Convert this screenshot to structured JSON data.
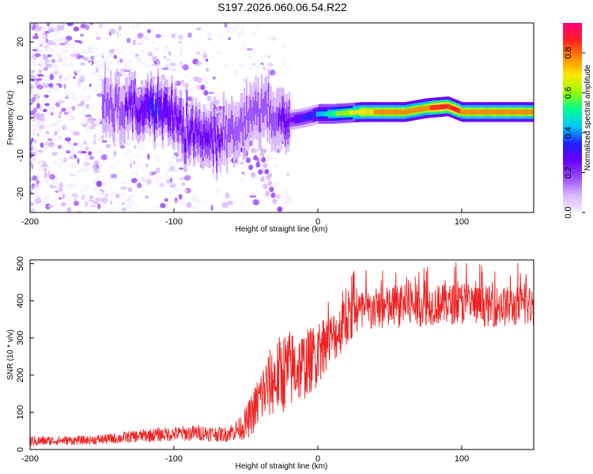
{
  "title": "S197.2026.060.06.54.R22",
  "colors": {
    "snr_line": "#ee2222",
    "background": "#ffffff",
    "colormap": [
      "#f5f0ff",
      "#d9b8ff",
      "#9b4dff",
      "#6a00ff",
      "#2020ff",
      "#00c8ff",
      "#00ff90",
      "#9cff00",
      "#ffe600",
      "#ff8800",
      "#ff2020",
      "#ff0080"
    ]
  },
  "chart_data": [
    {
      "type": "heatmap",
      "name": "spectrogram",
      "title": "S197.2026.060.06.54.R22",
      "xlabel": "Height of straight line (km)",
      "ylabel": "Frequency (Hz)",
      "xlim": [
        -200,
        150
      ],
      "ylim": [
        -25,
        25
      ],
      "xticks": [
        -200,
        -100,
        0,
        100
      ],
      "xtick_labels": [
        "-200",
        "-100",
        "0",
        "100"
      ],
      "yticks": [
        -20,
        -10,
        0,
        10,
        20
      ],
      "ytick_labels": [
        "-20",
        "-10",
        "0",
        "10",
        "20"
      ],
      "colorbar": {
        "label": "Normalized spectral amplitude",
        "range": [
          0,
          0.95
        ],
        "ticks": [
          0.0,
          0.2,
          0.4,
          0.6,
          0.8
        ],
        "tick_labels": [
          "0.0",
          "0.2",
          "0.4",
          "0.6",
          "0.8"
        ]
      },
      "ridge": [
        {
          "x": -150,
          "f": 3,
          "a": 0.2
        },
        {
          "x": -130,
          "f": 2,
          "a": 0.25
        },
        {
          "x": -115,
          "f": 3,
          "a": 0.35
        },
        {
          "x": -100,
          "f": 0,
          "a": 0.3
        },
        {
          "x": -90,
          "f": -5,
          "a": 0.3
        },
        {
          "x": -70,
          "f": -5,
          "a": 0.25
        },
        {
          "x": -55,
          "f": -2,
          "a": 0.2
        },
        {
          "x": -40,
          "f": 2,
          "a": 0.2
        },
        {
          "x": -25,
          "f": -1,
          "a": 0.25
        },
        {
          "x": -10,
          "f": 0,
          "a": 0.35
        },
        {
          "x": 0,
          "f": 1,
          "a": 0.45
        },
        {
          "x": 10,
          "f": 1,
          "a": 0.6
        },
        {
          "x": 30,
          "f": 1.5,
          "a": 0.8
        },
        {
          "x": 60,
          "f": 1.5,
          "a": 0.85
        },
        {
          "x": 75,
          "f": 2.5,
          "a": 0.9
        },
        {
          "x": 90,
          "f": 3,
          "a": 0.95
        },
        {
          "x": 100,
          "f": 1.5,
          "a": 0.9
        },
        {
          "x": 130,
          "f": 1.5,
          "a": 0.9
        },
        {
          "x": 150,
          "f": 1.5,
          "a": 0.85
        }
      ]
    },
    {
      "type": "line",
      "name": "snr",
      "xlabel": "Height of straight line (km)",
      "ylabel": "SNR (10 * v/v)",
      "xlim": [
        -200,
        150
      ],
      "ylim": [
        0,
        510
      ],
      "xticks": [
        -200,
        -100,
        0,
        100
      ],
      "xtick_labels": [
        "-200",
        "-100",
        "0",
        "100"
      ],
      "yticks": [
        0,
        100,
        200,
        300,
        400,
        500
      ],
      "ytick_labels": [
        "0",
        "100",
        "200",
        "300",
        "400",
        "500"
      ],
      "series": [
        {
          "name": "SNR",
          "x": [
            -200,
            -180,
            -160,
            -140,
            -120,
            -100,
            -80,
            -65,
            -55,
            -50,
            -45,
            -40,
            -35,
            -30,
            -25,
            -20,
            -15,
            -10,
            -5,
            0,
            5,
            10,
            15,
            20,
            30,
            40,
            60,
            80,
            100,
            120,
            150
          ],
          "y": [
            22,
            24,
            25,
            30,
            38,
            42,
            45,
            40,
            55,
            70,
            100,
            140,
            170,
            190,
            205,
            215,
            220,
            225,
            240,
            260,
            290,
            300,
            320,
            345,
            365,
            375,
            385,
            390,
            390,
            385,
            385
          ],
          "noise": [
            15,
            12,
            12,
            15,
            18,
            20,
            22,
            20,
            30,
            45,
            60,
            80,
            90,
            100,
            110,
            110,
            100,
            95,
            90,
            90,
            80,
            70,
            70,
            65,
            65,
            60,
            60,
            55,
            55,
            55,
            55
          ]
        }
      ]
    }
  ]
}
